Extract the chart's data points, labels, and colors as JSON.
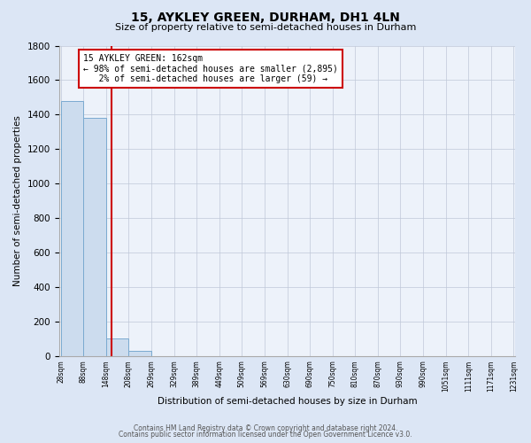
{
  "title": "15, AYKLEY GREEN, DURHAM, DH1 4LN",
  "subtitle": "Size of property relative to semi-detached houses in Durham",
  "xlabel": "Distribution of semi-detached houses by size in Durham",
  "ylabel": "Number of semi-detached properties",
  "bar_edges": [
    28,
    88,
    148,
    208,
    269,
    329,
    389,
    449,
    509,
    569,
    630,
    690,
    750,
    810,
    870,
    930,
    990,
    1051,
    1111,
    1171,
    1231
  ],
  "bar_heights": [
    1480,
    1380,
    100,
    30,
    0,
    0,
    0,
    0,
    0,
    0,
    0,
    0,
    0,
    0,
    0,
    0,
    0,
    0,
    0,
    0
  ],
  "bar_color": "#ccdcee",
  "bar_edge_color": "#7aaad0",
  "property_size": 162,
  "red_line_color": "#cc0000",
  "annotation_line1": "15 AYKLEY GREEN: 162sqm",
  "annotation_line2": "← 98% of semi-detached houses are smaller (2,895)",
  "annotation_line3": "   2% of semi-detached houses are larger (59) →",
  "annotation_box_color": "#ffffff",
  "annotation_box_edge_color": "#cc0000",
  "ylim": [
    0,
    1800
  ],
  "yticks": [
    0,
    200,
    400,
    600,
    800,
    1000,
    1200,
    1400,
    1600,
    1800
  ],
  "background_color": "#dce6f5",
  "plot_background_color": "#edf2fa",
  "grid_color": "#c0c8d8",
  "footer_line1": "Contains HM Land Registry data © Crown copyright and database right 2024.",
  "footer_line2": "Contains public sector information licensed under the Open Government Licence v3.0."
}
